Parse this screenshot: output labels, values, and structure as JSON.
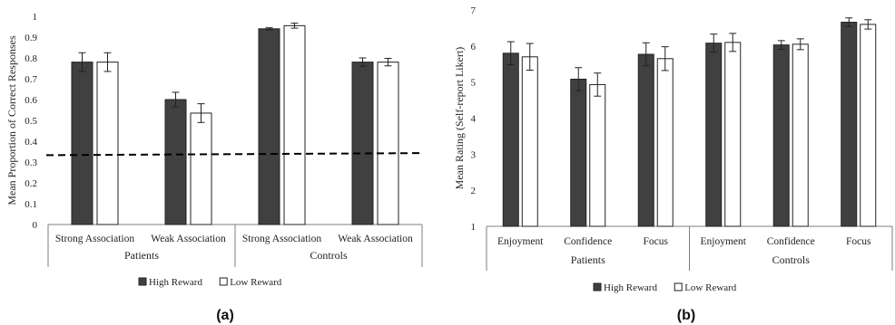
{
  "colors": {
    "high": "#404040",
    "low": "#ffffff",
    "stroke": "#222222",
    "axis": "#7f7f7f"
  },
  "chart_data": [
    {
      "type": "bar",
      "panel_label": "(a)",
      "ylabel": "Mean Proportion of Correct Responses",
      "ylim": [
        0,
        1
      ],
      "yticks": [
        "0",
        "0.1",
        "0.2",
        "0.3",
        "0.4",
        "0.5",
        "0.6",
        "0.7",
        "0.8",
        "0.9",
        "1"
      ],
      "groups": [
        "Patients",
        "Controls"
      ],
      "categories": [
        "Strong Association",
        "Weak Association",
        "Strong Association",
        "Weak Association"
      ],
      "series": [
        {
          "name": "High Reward",
          "values": [
            0.78,
            0.6,
            0.94,
            0.78
          ],
          "errors": [
            0.045,
            0.035,
            0.005,
            0.02
          ]
        },
        {
          "name": "Low Reward",
          "values": [
            0.78,
            0.535,
            0.955,
            0.78
          ],
          "errors": [
            0.045,
            0.045,
            0.012,
            0.018
          ]
        }
      ],
      "reference_line": {
        "style": "dashed",
        "from": 0.333,
        "to": 0.343
      },
      "legend": "bottom"
    },
    {
      "type": "bar",
      "panel_label": "(b)",
      "ylabel": "Mean Rating (Self-report Likert)",
      "ylim": [
        1,
        7
      ],
      "yticks": [
        "1",
        "2",
        "3",
        "4",
        "5",
        "6",
        "7"
      ],
      "groups": [
        "Patients",
        "Controls"
      ],
      "categories": [
        "Enjoyment",
        "Confidence",
        "Focus",
        "Enjoyment",
        "Confidence",
        "Focus"
      ],
      "series": [
        {
          "name": "High Reward",
          "values": [
            5.8,
            5.08,
            5.77,
            6.08,
            6.03,
            6.66
          ],
          "errors": [
            0.32,
            0.32,
            0.32,
            0.25,
            0.12,
            0.12
          ]
        },
        {
          "name": "Low Reward",
          "values": [
            5.7,
            4.93,
            5.65,
            6.1,
            6.05,
            6.6
          ],
          "errors": [
            0.37,
            0.32,
            0.33,
            0.25,
            0.15,
            0.13
          ]
        }
      ],
      "legend": "bottom"
    }
  ]
}
